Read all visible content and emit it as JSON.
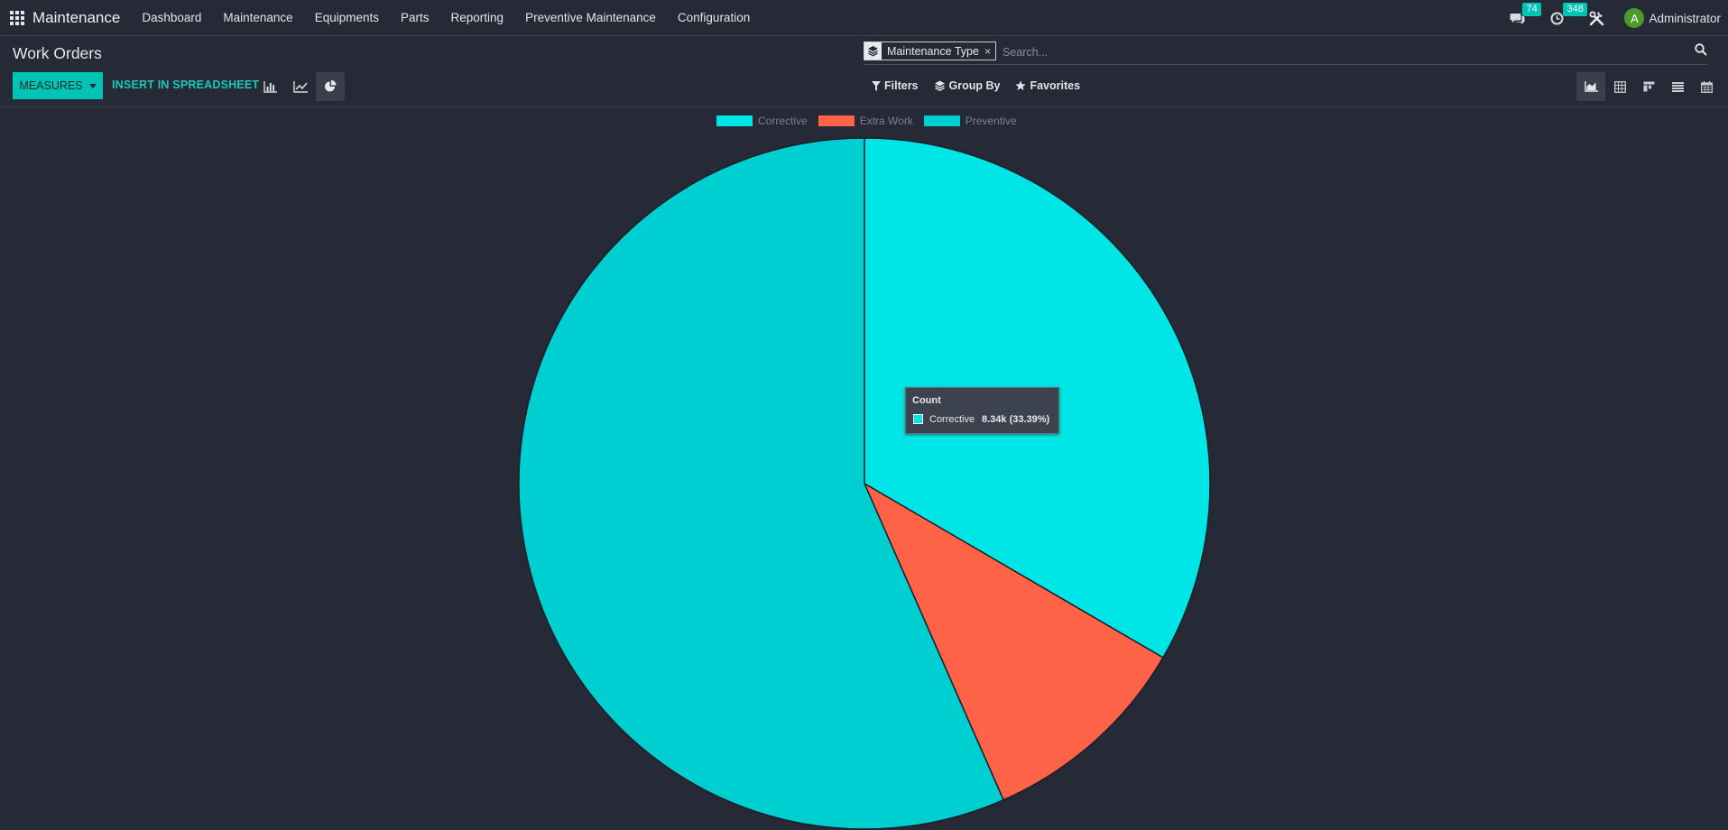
{
  "nav": {
    "brand": "Maintenance",
    "menu": [
      "Dashboard",
      "Maintenance",
      "Equipments",
      "Parts",
      "Reporting",
      "Preventive Maintenance",
      "Configuration"
    ],
    "messages_count": "74",
    "activities_count": "348",
    "user_initial": "A",
    "user_name": "Administrator"
  },
  "control_panel": {
    "title": "Work Orders",
    "measures_label": "MEASURES",
    "insert_label": "INSERT IN SPREADSHEET",
    "chart_modes": [
      "bar-chart-icon",
      "line-chart-icon",
      "pie-chart-icon"
    ],
    "active_chart_mode": "pie-chart-icon"
  },
  "search": {
    "facet_label": "Maintenance Type",
    "placeholder": "Search...",
    "filters_label": "Filters",
    "group_by_label": "Group By",
    "favorites_label": "Favorites"
  },
  "views": [
    "graph-view-icon",
    "pivot-view-icon",
    "kanban-view-icon",
    "list-view-icon",
    "calendar-view-icon"
  ],
  "active_view": "graph-view-icon",
  "colors": {
    "accent": "#00c4b4",
    "corrective": "#00e6e6",
    "extra_work": "#ff6347",
    "preventive": "#00cfd2"
  },
  "chart_data": {
    "type": "pie",
    "measure": "Count",
    "categories": [
      "Corrective",
      "Extra Work",
      "Preventive"
    ],
    "values": [
      8340,
      2500,
      14130
    ],
    "percentages": [
      33.39,
      10.0,
      56.61
    ],
    "legend_position": "top-center"
  },
  "tooltip": {
    "title": "Count",
    "label": "Corrective",
    "value": "8.34k (33.39%)"
  }
}
